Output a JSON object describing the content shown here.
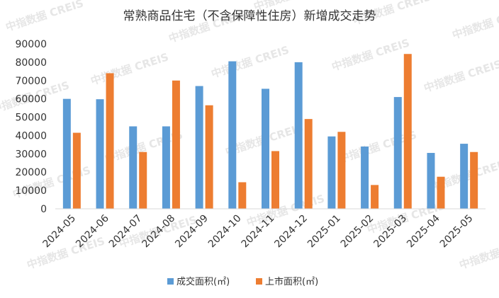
{
  "chart_data": {
    "type": "bar",
    "title": "常熟商品住宅（不含保障性住房）新增成交走势",
    "categories": [
      "2024-05",
      "2024-06",
      "2024-07",
      "2024-08",
      "2024-09",
      "2024-10",
      "2024-11",
      "2024-12",
      "2025-01",
      "2025-02",
      "2025-03",
      "2025-04",
      "2025-05"
    ],
    "series": [
      {
        "name": "成交面积(㎡)",
        "color": "#5b9bd5",
        "values": [
          60000,
          59800,
          45000,
          45000,
          67000,
          80500,
          65500,
          80000,
          39500,
          34000,
          61000,
          30500,
          35500
        ]
      },
      {
        "name": "上市面积(㎡)",
        "color": "#ed7d31",
        "values": [
          41500,
          74000,
          31000,
          70000,
          56500,
          14500,
          31500,
          49000,
          42000,
          13000,
          84500,
          17500,
          31000
        ]
      }
    ],
    "yticks": [
      "0",
      "10000",
      "20000",
      "30000",
      "40000",
      "50000",
      "60000",
      "70000",
      "80000",
      "90000"
    ],
    "ylim": [
      0,
      90000
    ],
    "grid": false,
    "legend_position": "bottom",
    "xlabel": "",
    "ylabel": ""
  },
  "watermark": "中指数据 CREIS"
}
